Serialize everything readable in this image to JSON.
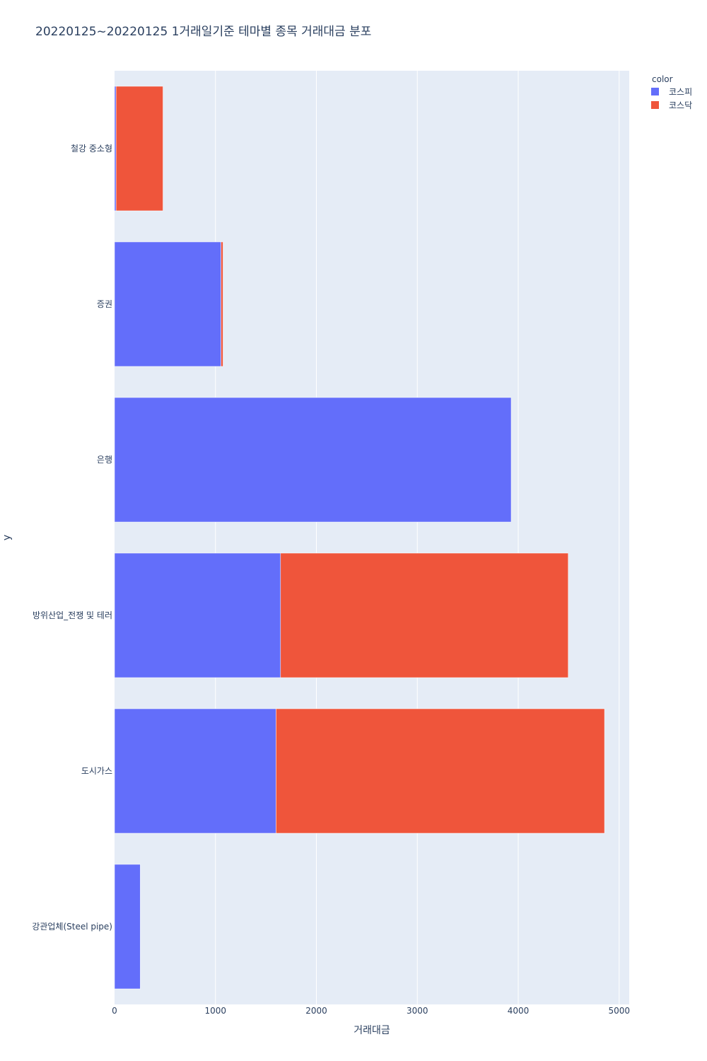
{
  "chart_data": {
    "type": "bar",
    "orientation": "horizontal",
    "barmode": "stack",
    "title": "20220125~20220125 1거래일기준 테마별 종목 거래대금 분포",
    "xlabel": "거래대금",
    "ylabel": "y",
    "xlim": [
      0,
      5100
    ],
    "xticks": [
      0,
      1000,
      2000,
      3000,
      4000,
      5000
    ],
    "categories": [
      "철강 중소형",
      "증권",
      "은행",
      "방위산업_전쟁 및 테러",
      "도시가스",
      "강관업체(Steel pipe)"
    ],
    "series": [
      {
        "name": "코스피",
        "color": "#636efa",
        "values": [
          15,
          1055,
          3930,
          1645,
          1600,
          255
        ]
      },
      {
        "name": "코스닥",
        "color": "#ef553b",
        "values": [
          465,
          20,
          0,
          2850,
          3255,
          0
        ]
      }
    ],
    "legend": {
      "title": "color",
      "position": "top-right"
    },
    "grid": true,
    "plot_background": "#e5ecf6"
  }
}
